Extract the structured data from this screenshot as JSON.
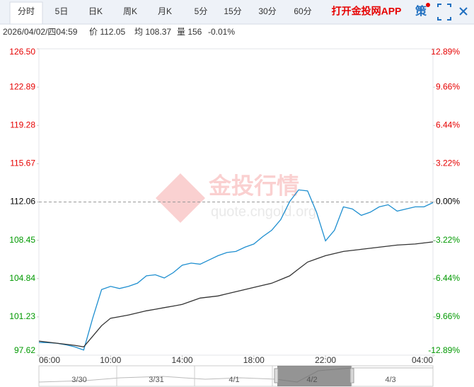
{
  "toolbar": {
    "tabs": [
      "分时",
      "5日",
      "日K",
      "周K",
      "月K",
      "5分",
      "15分",
      "30分",
      "60分"
    ],
    "app_link": "打开金投网APP",
    "strategy": "策"
  },
  "info": {
    "time": "2026/04/02/四04:59",
    "price": "价 112.05",
    "average": "均 108.37",
    "volume": "量 156",
    "change": "-0.01%"
  },
  "watermark": {
    "name": "金投行情",
    "url": "quote.cngold.org"
  },
  "navigator": {
    "labels": [
      "3/30",
      "3/31",
      "4/1",
      "4/2",
      "4/3"
    ]
  },
  "chart_data": {
    "type": "line",
    "x": [
      "06:00",
      "06:30",
      "07:00",
      "07:30",
      "08:00",
      "08:30",
      "09:00",
      "09:30",
      "10:00",
      "10:30",
      "11:00",
      "11:30",
      "12:00",
      "12:30",
      "13:00",
      "13:30",
      "14:00",
      "14:30",
      "15:00",
      "15:30",
      "16:00",
      "16:30",
      "17:00",
      "17:30",
      "18:00",
      "18:30",
      "19:00",
      "19:30",
      "20:00",
      "20:30",
      "21:00",
      "21:30",
      "22:00",
      "22:30",
      "23:00",
      "23:30",
      "00:00",
      "00:30",
      "01:00",
      "01:30",
      "02:00",
      "02:30",
      "03:00",
      "03:30",
      "04:00"
    ],
    "series": [
      {
        "name": "价",
        "color": "#1f8fd0",
        "values": [
          98.82,
          98.8,
          98.75,
          98.6,
          98.4,
          98.1,
          101.1,
          103.8,
          104.1,
          103.9,
          104.1,
          104.4,
          105.1,
          105.2,
          104.9,
          105.4,
          106.1,
          106.3,
          106.2,
          106.6,
          107.0,
          107.3,
          107.4,
          107.8,
          108.1,
          108.8,
          109.4,
          110.4,
          112.1,
          113.2,
          113.1,
          111.1,
          108.4,
          109.4,
          111.6,
          111.4,
          110.8,
          111.1,
          111.6,
          111.8,
          111.2,
          111.4,
          111.6,
          111.6,
          112.0
        ]
      },
      {
        "name": "均",
        "color": "#333333",
        "values": [
          98.95,
          98.85,
          98.75,
          98.65,
          98.55,
          98.4,
          99.4,
          100.4,
          101.1,
          101.25,
          101.4,
          101.6,
          101.8,
          101.95,
          102.1,
          102.25,
          102.4,
          102.7,
          103.0,
          103.1,
          103.2,
          103.4,
          103.6,
          103.8,
          104.0,
          104.2,
          104.4,
          104.75,
          105.1,
          105.75,
          106.4,
          106.7,
          107.0,
          107.2,
          107.4,
          107.5,
          107.6,
          107.7,
          107.8,
          107.9,
          108.0,
          108.05,
          108.1,
          108.2,
          108.3
        ]
      }
    ],
    "xlim": [
      "06:00",
      "04:00"
    ],
    "xticks": [
      "06:00",
      "10:00",
      "14:00",
      "18:00",
      "22:00",
      "04:00"
    ],
    "ylim": [
      97.62,
      126.5
    ],
    "yticks": [
      {
        "value": 126.5,
        "label": "126.50"
      },
      122.89,
      119.28,
      115.67,
      112.06,
      108.45,
      104.84,
      101.23,
      97.62
    ],
    "y2lim": [
      -12.89,
      12.89
    ],
    "y2ticks": [
      {
        "value": 12.89,
        "label": "12.89%"
      },
      {
        "value": 9.66,
        "label": "9.66%"
      },
      {
        "value": 6.44,
        "label": "6.44%"
      },
      {
        "value": 3.22,
        "label": "3.22%"
      },
      {
        "value": 0,
        "label": "0.00%"
      },
      {
        "value": -3.22,
        "label": "-3.22%"
      },
      {
        "value": -6.44,
        "label": "-6.44%"
      },
      {
        "value": -9.66,
        "label": "-9.66%"
      },
      {
        "value": -12.89,
        "label": "-12.89%"
      }
    ],
    "reference_line": 112.06,
    "up_color": "#e60000",
    "down_color": "#009900",
    "grid": false
  }
}
